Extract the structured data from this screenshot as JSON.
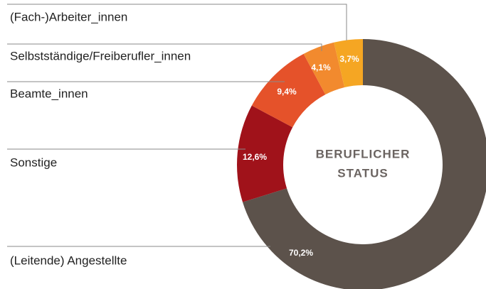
{
  "chart_data": {
    "type": "donut",
    "center_label": [
      "BERUFLICHER",
      "STATUS"
    ],
    "categories": [
      "(Leitende) Angestellte",
      "Sonstige",
      "Beamte_innen",
      "Selbstständige/Freiberufler_innen",
      "(Fach-)Arbeiter_innen"
    ],
    "values": [
      70.2,
      12.6,
      9.4,
      4.1,
      3.7
    ],
    "value_labels": [
      "70,2%",
      "12,6%",
      "9,4%",
      "4,1%",
      "3,7%"
    ],
    "colors": [
      "#5c524b",
      "#a0121a",
      "#e5522a",
      "#f28a2e",
      "#f5a623"
    ]
  }
}
